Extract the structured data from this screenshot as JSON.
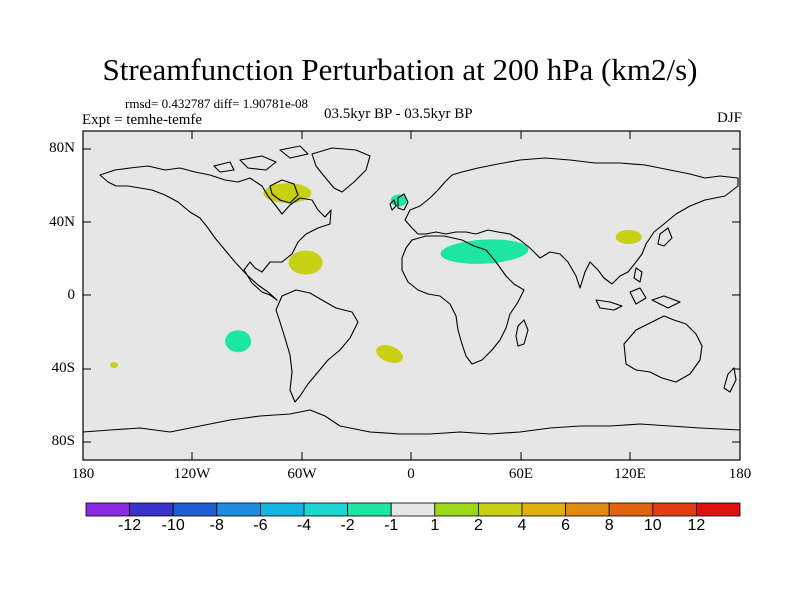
{
  "title": "Streamfunction Perturbation at 200 hPa (km2/s)",
  "stats": "rmsd= 0.432787 diff= 1.90781e-08",
  "experiment": "Expt = temhe-temfe",
  "period": "03.5kyr BP - 03.5kyr BP",
  "season": "DJF",
  "y_axis_labels": [
    "80N",
    "40N",
    "0",
    "40S",
    "80S"
  ],
  "x_axis_labels": [
    "180",
    "120W",
    "60W",
    "0",
    "60E",
    "120E",
    "180"
  ],
  "colorbar": {
    "labels": [
      "-12",
      "-10",
      "-8",
      "-6",
      "-4",
      "-2",
      "-1",
      "1",
      "2",
      "4",
      "6",
      "8",
      "10",
      "12"
    ],
    "colors": [
      "#8a2be2",
      "#3a33cc",
      "#1f5fd6",
      "#1f8ddf",
      "#12b5e0",
      "#1cd4d0",
      "#1de6a3",
      "#e6e6e6",
      "#9bd81a",
      "#c6d114",
      "#e0b00f",
      "#e08a10",
      "#e06410",
      "#e03d10",
      "#e01010"
    ]
  },
  "map_colors": {
    "background": "#e6e6e6",
    "coast": "#000000"
  },
  "anomalies": [
    {
      "name": "hudson-bay",
      "lon": -68,
      "lat": 56,
      "class": "2"
    },
    {
      "name": "caribbean",
      "lon": -58,
      "lat": 18,
      "class": "2"
    },
    {
      "name": "british-isles",
      "lon": -7,
      "lat": 52,
      "class": "-1"
    },
    {
      "name": "arabia",
      "lon": 40,
      "lat": 24,
      "class": "-1"
    },
    {
      "name": "east-china",
      "lon": 119,
      "lat": 32,
      "class": "2"
    },
    {
      "name": "south-pacific",
      "lon": -95,
      "lat": -25,
      "class": "-1"
    },
    {
      "name": "south-atlantic",
      "lon": -12,
      "lat": -32,
      "class": "2"
    },
    {
      "name": "far-south-pacific",
      "lon": -163,
      "lat": -38,
      "class": "2"
    }
  ]
}
